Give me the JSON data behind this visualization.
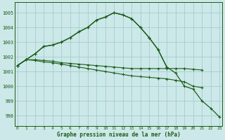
{
  "x": [
    0,
    1,
    2,
    3,
    4,
    5,
    6,
    7,
    8,
    9,
    10,
    11,
    12,
    13,
    14,
    15,
    16,
    17,
    18,
    19,
    20,
    21,
    22,
    23
  ],
  "line_main": [
    1001.4,
    1001.8,
    1002.2,
    1002.7,
    1002.8,
    1003.0,
    1003.3,
    1003.7,
    1004.0,
    1004.5,
    1004.7,
    1005.0,
    1004.85,
    1004.6,
    1004.0,
    1003.3,
    1002.5,
    1001.3,
    null,
    null,
    null,
    null,
    null,
    null
  ],
  "line_full": [
    1001.4,
    1001.8,
    1002.2,
    1002.7,
    1002.8,
    1003.0,
    1003.3,
    1003.7,
    1004.0,
    1004.5,
    1004.7,
    1005.0,
    1004.85,
    1004.6,
    1004.0,
    1003.3,
    1002.5,
    1001.3,
    1000.9,
    1000.0,
    999.8,
    999.0,
    998.5,
    997.9
  ],
  "line_flat1": [
    1001.4,
    1001.8,
    1001.8,
    1001.75,
    1001.7,
    1001.6,
    1001.55,
    1001.5,
    1001.45,
    1001.4,
    1001.35,
    1001.3,
    1001.25,
    1001.2,
    1001.2,
    1001.2,
    1001.2,
    1001.2,
    1001.2,
    1001.2,
    1001.15,
    1001.1,
    null,
    null
  ],
  "line_flat2": [
    1001.4,
    1001.8,
    1001.75,
    1001.65,
    1001.6,
    1001.5,
    1001.4,
    1001.3,
    1001.2,
    1001.1,
    1001.0,
    1000.9,
    1000.8,
    1000.7,
    1000.65,
    1000.6,
    1000.55,
    1000.5,
    1000.4,
    1000.3,
    1000.0,
    999.9,
    null,
    null
  ],
  "bg_color": "#cce8e8",
  "line_color": "#1a5c1a",
  "grid_color": "#9dc8c8",
  "xlabel": "Graphe pression niveau de la mer (hPa)",
  "ylim": [
    997.3,
    1005.7
  ],
  "yticks": [
    998,
    999,
    1000,
    1001,
    1002,
    1003,
    1004,
    1005
  ],
  "xticks": [
    0,
    1,
    2,
    3,
    4,
    5,
    6,
    7,
    8,
    9,
    10,
    11,
    12,
    13,
    14,
    15,
    16,
    17,
    18,
    19,
    20,
    21,
    22,
    23
  ]
}
